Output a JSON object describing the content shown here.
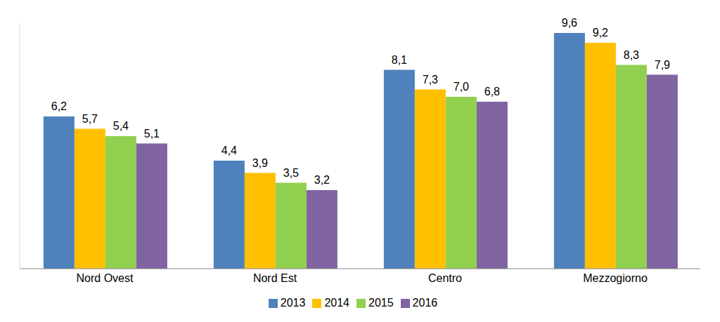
{
  "chart_data": {
    "type": "bar",
    "categories": [
      "Nord Ovest",
      "Nord Est",
      "Centro",
      "Mezzogiorno"
    ],
    "series": [
      {
        "name": "2013",
        "color": "#4f81bd",
        "values": [
          6.2,
          4.4,
          8.1,
          9.6
        ],
        "value_labels": [
          "6,2",
          "4,4",
          "8,1",
          "9,6"
        ]
      },
      {
        "name": "2014",
        "color": "#ffc000",
        "values": [
          5.7,
          3.9,
          7.3,
          9.2
        ],
        "value_labels": [
          "5,7",
          "3,9",
          "7,3",
          "9,2"
        ]
      },
      {
        "name": "2015",
        "color": "#92d050",
        "values": [
          5.4,
          3.5,
          7.0,
          8.3
        ],
        "value_labels": [
          "5,4",
          "3,5",
          "7,0",
          "8,3"
        ]
      },
      {
        "name": "2016",
        "color": "#8064a2",
        "values": [
          5.1,
          3.2,
          6.8,
          7.9
        ],
        "value_labels": [
          "5,1",
          "3,2",
          "6,8",
          "7,9"
        ]
      }
    ],
    "ylim": [
      0,
      10
    ],
    "tick_labels": "x",
    "data_labels": true,
    "legend": "bottom"
  }
}
